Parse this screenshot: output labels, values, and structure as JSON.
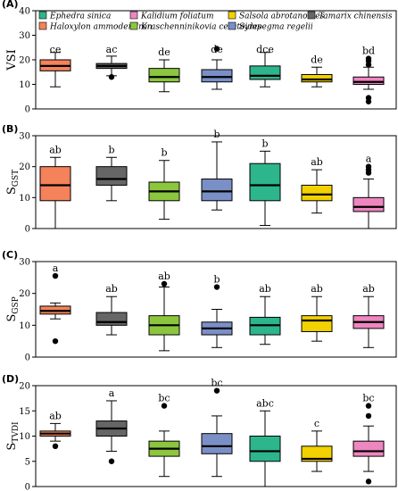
{
  "species": [
    {
      "name": "Haloxylon ammodendron",
      "color": "#F4825A"
    },
    {
      "name": "Tamarix chinensis",
      "color": "#666666"
    },
    {
      "name": "Kraschenninikovia ceratoides",
      "color": "#8CC63F"
    },
    {
      "name": "Sympegma regelii",
      "color": "#7B8FC7"
    },
    {
      "name": "Ephedra sinica",
      "color": "#2DB58C"
    },
    {
      "name": "Salsola abrotanoides",
      "color": "#F2D100"
    },
    {
      "name": "Kalidium foliatum",
      "color": "#EE86C0"
    }
  ],
  "legend_order": [
    4,
    6,
    5,
    1,
    0,
    2,
    3
  ],
  "chart_data": [
    {
      "type": "box",
      "panel_label": "(A)",
      "ylabel": "VSI",
      "ylabel_sub": "",
      "ylim": [
        0,
        40
      ],
      "yticks": [
        0,
        10,
        20,
        30,
        40
      ],
      "boxes": [
        {
          "species": "Haloxylon ammodendron",
          "whisker_low": 9,
          "q1": 15.5,
          "median": 17.5,
          "q3": 20,
          "whisker_high": 23,
          "outliers": [],
          "letter": "ce"
        },
        {
          "species": "Tamarix chinensis",
          "whisker_low": 13.5,
          "q1": 16.5,
          "median": 17.5,
          "q3": 18.5,
          "whisker_high": 21.5,
          "outliers": [
            13
          ],
          "letter": "ac"
        },
        {
          "species": "Kraschenninikovia ceratoides",
          "whisker_low": 7,
          "q1": 11,
          "median": 13,
          "q3": 16.5,
          "whisker_high": 20,
          "outliers": [],
          "letter": "de"
        },
        {
          "species": "Sympegma regelii",
          "whisker_low": 8,
          "q1": 11,
          "median": 13,
          "q3": 16,
          "whisker_high": 20,
          "outliers": [
            24.5
          ],
          "letter": "de"
        },
        {
          "species": "Ephedra sinica",
          "whisker_low": 9,
          "q1": 12,
          "median": 13.5,
          "q3": 17.5,
          "whisker_high": 23,
          "outliers": [],
          "letter": "dce"
        },
        {
          "species": "Salsola abrotanoides",
          "whisker_low": 9,
          "q1": 11,
          "median": 12,
          "q3": 14,
          "whisker_high": 17,
          "outliers": [],
          "letter": "de"
        },
        {
          "species": "Kalidium foliatum",
          "whisker_low": 8,
          "q1": 10,
          "median": 11,
          "q3": 13,
          "whisker_high": 17,
          "outliers": [
            3,
            4.5,
            18,
            19.5,
            20.5
          ],
          "letter": "bd"
        }
      ]
    },
    {
      "type": "box",
      "panel_label": "(B)",
      "ylabel": "S",
      "ylabel_sub": "GST",
      "ylim": [
        0,
        30
      ],
      "yticks": [
        0,
        10,
        20,
        30
      ],
      "boxes": [
        {
          "species": "Haloxylon ammodendron",
          "whisker_low": 0,
          "q1": 9,
          "median": 14,
          "q3": 20,
          "whisker_high": 23,
          "outliers": [],
          "letter": "ab"
        },
        {
          "species": "Tamarix chinensis",
          "whisker_low": 9,
          "q1": 14,
          "median": 16,
          "q3": 20,
          "whisker_high": 23,
          "outliers": [],
          "letter": "b"
        },
        {
          "species": "Kraschenninikovia ceratoides",
          "whisker_low": 3,
          "q1": 9,
          "median": 12,
          "q3": 15,
          "whisker_high": 22,
          "outliers": [],
          "letter": "b"
        },
        {
          "species": "Sympegma regelii",
          "whisker_low": 6,
          "q1": 9,
          "median": 12,
          "q3": 16,
          "whisker_high": 28,
          "outliers": [],
          "letter": "b"
        },
        {
          "species": "Ephedra sinica",
          "whisker_low": 1,
          "q1": 9,
          "median": 14,
          "q3": 21,
          "whisker_high": 25,
          "outliers": [],
          "letter": "b"
        },
        {
          "species": "Salsola abrotanoides",
          "whisker_low": 5,
          "q1": 9,
          "median": 11,
          "q3": 14,
          "whisker_high": 19,
          "outliers": [],
          "letter": "ab"
        },
        {
          "species": "Kalidium foliatum",
          "whisker_low": 0,
          "q1": 5.5,
          "median": 7,
          "q3": 10,
          "whisker_high": 16,
          "outliers": [
            18,
            19,
            20
          ],
          "letter": "a"
        }
      ]
    },
    {
      "type": "box",
      "panel_label": "(C)",
      "ylabel": "S",
      "ylabel_sub": "GSP",
      "ylim": [
        0,
        30
      ],
      "yticks": [
        0,
        10,
        20,
        30
      ],
      "boxes": [
        {
          "species": "Haloxylon ammodendron",
          "whisker_low": 12,
          "q1": 13.5,
          "median": 14.5,
          "q3": 16,
          "whisker_high": 17,
          "outliers": [
            5,
            25.5
          ],
          "letter": "a"
        },
        {
          "species": "Tamarix chinensis",
          "whisker_low": 7,
          "q1": 10,
          "median": 11,
          "q3": 14,
          "whisker_high": 19,
          "outliers": [],
          "letter": "ab"
        },
        {
          "species": "Kraschenninikovia ceratoides",
          "whisker_low": 2,
          "q1": 7,
          "median": 10,
          "q3": 13,
          "whisker_high": 22,
          "outliers": [
            23
          ],
          "letter": "ab"
        },
        {
          "species": "Sympegma regelii",
          "whisker_low": 3,
          "q1": 7,
          "median": 9,
          "q3": 11,
          "whisker_high": 15,
          "outliers": [
            22
          ],
          "letter": "b"
        },
        {
          "species": "Ephedra sinica",
          "whisker_low": 4,
          "q1": 7,
          "median": 10,
          "q3": 12.5,
          "whisker_high": 19,
          "outliers": [],
          "letter": "ab"
        },
        {
          "species": "Salsola abrotanoides",
          "whisker_low": 5,
          "q1": 8,
          "median": 11.5,
          "q3": 13,
          "whisker_high": 19,
          "outliers": [],
          "letter": "ab"
        },
        {
          "species": "Kalidium foliatum",
          "whisker_low": 3,
          "q1": 9,
          "median": 11,
          "q3": 13,
          "whisker_high": 19,
          "outliers": [],
          "letter": "ab"
        }
      ]
    },
    {
      "type": "box",
      "panel_label": "(D)",
      "ylabel": "S",
      "ylabel_sub": "TVDI",
      "ylim": [
        0,
        20
      ],
      "yticks": [
        0,
        5,
        10,
        15,
        20
      ],
      "boxes": [
        {
          "species": "Haloxylon ammodendron",
          "whisker_low": 9,
          "q1": 10,
          "median": 10.5,
          "q3": 11,
          "whisker_high": 12.5,
          "outliers": [
            8
          ],
          "letter": "ab"
        },
        {
          "species": "Tamarix chinensis",
          "whisker_low": 7,
          "q1": 10,
          "median": 11.5,
          "q3": 13,
          "whisker_high": 17,
          "outliers": [
            5
          ],
          "letter": "a"
        },
        {
          "species": "Kraschenninikovia ceratoides",
          "whisker_low": 2,
          "q1": 6,
          "median": 7.5,
          "q3": 9,
          "whisker_high": 11,
          "outliers": [
            16
          ],
          "letter": "bc"
        },
        {
          "species": "Sympegma regelii",
          "whisker_low": 2,
          "q1": 6.5,
          "median": 8,
          "q3": 10.5,
          "whisker_high": 14,
          "outliers": [
            19
          ],
          "letter": "bc"
        },
        {
          "species": "Ephedra sinica",
          "whisker_low": 0,
          "q1": 5,
          "median": 7,
          "q3": 10,
          "whisker_high": 15,
          "outliers": [],
          "letter": "abc"
        },
        {
          "species": "Salsola abrotanoides",
          "whisker_low": 3,
          "q1": 5,
          "median": 5.5,
          "q3": 8,
          "whisker_high": 11,
          "outliers": [],
          "letter": "c"
        },
        {
          "species": "Kalidium foliatum",
          "whisker_low": 3,
          "q1": 6,
          "median": 7,
          "q3": 9,
          "whisker_high": 12,
          "outliers": [
            1,
            14,
            16
          ],
          "letter": "bc"
        }
      ]
    }
  ]
}
